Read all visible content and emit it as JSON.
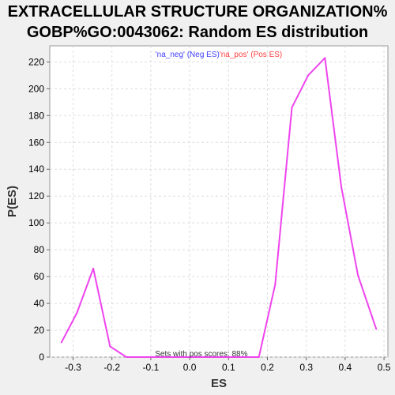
{
  "chart_data": {
    "type": "line",
    "title_line1": "EXTRACELLULAR STRUCTURE ORGANIZATION%",
    "title_line2": "GOBP%GO:0043062: Random ES distribution",
    "xlabel": "ES",
    "ylabel": "P(ES)",
    "xlim": [
      -0.36,
      0.51
    ],
    "ylim": [
      0,
      232
    ],
    "xticks": [
      -0.3,
      -0.2,
      -0.1,
      0.0,
      0.1,
      0.2,
      0.3,
      0.4,
      0.5
    ],
    "xtick_labels": [
      "-0.3",
      "-0.2",
      "-0.1",
      "0.0",
      "0.1",
      "0.2",
      "0.3",
      "0.4",
      "0.5"
    ],
    "yticks": [
      0,
      20,
      40,
      60,
      80,
      100,
      120,
      140,
      160,
      180,
      200,
      220
    ],
    "ytick_labels": [
      "0",
      "20",
      "40",
      "60",
      "80",
      "100",
      "120",
      "140",
      "160",
      "180",
      "200",
      "220"
    ],
    "grid": true,
    "legend": {
      "placement": "top-center",
      "neg_label": "'na_neg' (Neg ES)",
      "pos_label": "'na_pos' (Pos ES)",
      "neg_color": "#4040ff",
      "pos_color": "#ff4040"
    },
    "series": [
      {
        "color": "#ee44ee",
        "x": [
          -0.33,
          -0.29,
          -0.248,
          -0.205,
          -0.163,
          -0.12,
          -0.078,
          -0.035,
          0.007,
          0.05,
          0.093,
          0.135,
          0.178,
          0.22,
          0.263,
          0.305,
          0.348,
          0.39,
          0.433,
          0.48
        ],
        "y": [
          11,
          33,
          66,
          8,
          0,
          0,
          0,
          0,
          0,
          0,
          0,
          0,
          0,
          54,
          186,
          210,
          223,
          127,
          61,
          21
        ]
      }
    ],
    "annotation": "Sets with pos scores: 88%"
  }
}
